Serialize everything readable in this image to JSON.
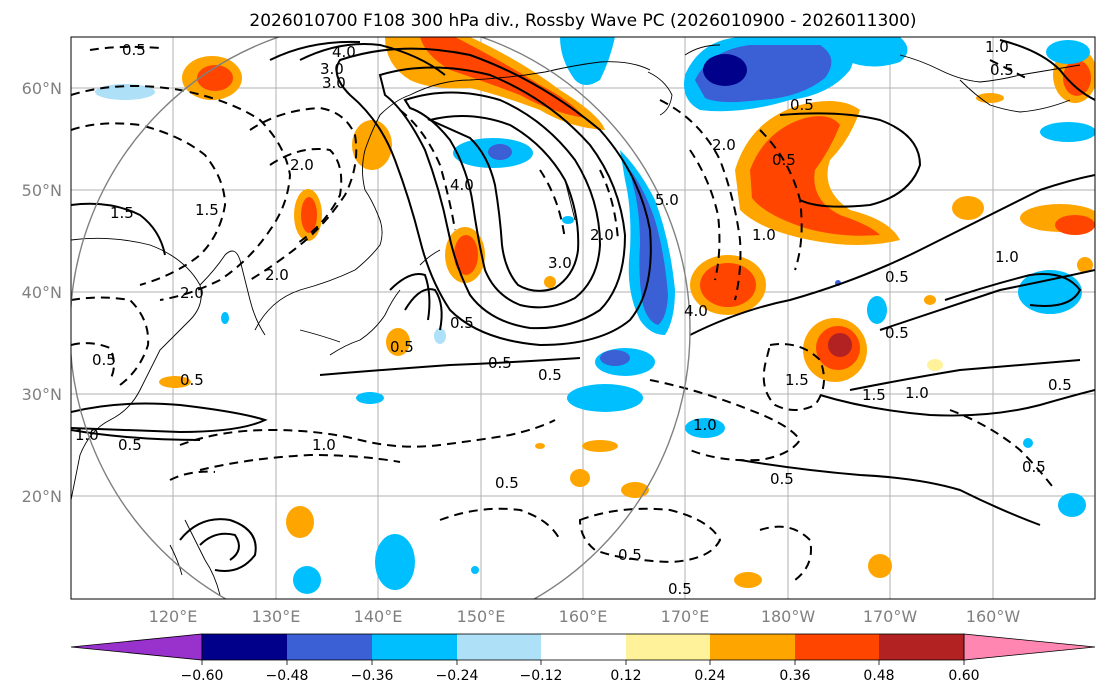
{
  "title": "2026010700 F108 300 hPa div., Rossby Wave PC (2026010900 - 2026011300)",
  "map": {
    "lat_labels": [
      "60°N",
      "50°N",
      "40°N",
      "30°N",
      "20°N"
    ],
    "lon_labels": [
      "120°E",
      "130°E",
      "140°E",
      "150°E",
      "160°E",
      "170°E",
      "180°W",
      "170°W",
      "160°W"
    ],
    "extent": {
      "lon_min": 110,
      "lon_max": 210,
      "lat_min": 10,
      "lat_max": 65
    },
    "contour_labels": [
      "0.5",
      "1.0",
      "1.5",
      "2.0",
      "3.0",
      "4.0",
      "5.0"
    ],
    "colors": {
      "pos_0_12": "#fff29a",
      "pos_0_24": "#ffa500",
      "pos_0_36": "#ff4500",
      "pos_0_48": "#b22222",
      "pos_0_60": "#ff86b0",
      "neg_0_12": "#aee0f8",
      "neg_0_24": "#00bfff",
      "neg_0_36": "#3b5fd4",
      "neg_0_48": "#00008b",
      "neg_0_60": "#9932cc"
    }
  },
  "colorbar": {
    "ticks": [
      "−0.60",
      "−0.48",
      "−0.36",
      "−0.24",
      "−0.12",
      "0.12",
      "0.24",
      "0.36",
      "0.48",
      "0.60"
    ],
    "colors": [
      "#9932cc",
      "#00008b",
      "#3b5fd4",
      "#00bfff",
      "#aee0f8",
      "#ffffff",
      "#fff29a",
      "#ffa500",
      "#ff4500",
      "#b22222",
      "#ff86b0"
    ]
  }
}
